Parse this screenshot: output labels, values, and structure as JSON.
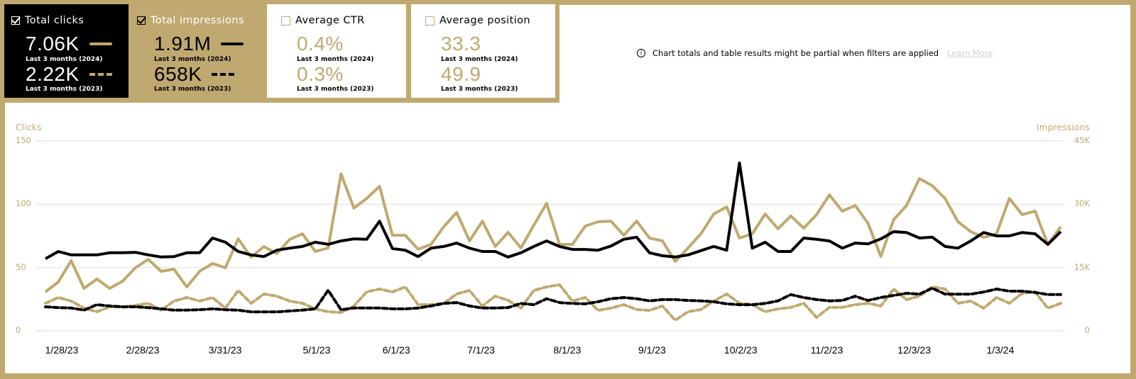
{
  "colors": {
    "gold": "#bfa970",
    "black": "#000000",
    "grid": "#f0eaea",
    "muted": "#d0d0d0"
  },
  "cards": [
    {
      "title": "Total clicks",
      "checked": true,
      "icon": "checkbox-checked-icon",
      "current": {
        "value": "7.06K",
        "label": "Last 3 months (2024)"
      },
      "previous": {
        "value": "2.22K",
        "label": "Last 3 months (2023)"
      }
    },
    {
      "title": "Total impressions",
      "checked": true,
      "icon": "checkbox-checked-icon",
      "current": {
        "value": "1.91M",
        "label": "Last 3 months (2024)"
      },
      "previous": {
        "value": "658K",
        "label": "Last 3 months (2023)"
      }
    },
    {
      "title": "Average CTR",
      "checked": false,
      "icon": "checkbox-empty-icon",
      "current": {
        "value": "0.4%",
        "label": "Last 3 months (2024)"
      },
      "previous": {
        "value": "0.3%",
        "label": "Last 3 months (2023)"
      }
    },
    {
      "title": "Average position",
      "checked": false,
      "icon": "checkbox-empty-icon",
      "current": {
        "value": "33.3",
        "label": "Last 3 months (2024)"
      },
      "previous": {
        "value": "49.9",
        "label": "Last 3 months (2023)"
      }
    }
  ],
  "notice": {
    "icon": "info-icon",
    "text": "Chart totals and table results might be partial when filters are applied",
    "link": "Learn More"
  },
  "chart_data": {
    "type": "line",
    "left_axis": {
      "label": "Clicks",
      "ticks": [
        "150",
        "100",
        "50",
        "0"
      ],
      "tick_values": [
        150,
        100,
        50,
        0
      ],
      "range": [
        0,
        150
      ]
    },
    "right_axis": {
      "label": "Impressions",
      "ticks": [
        "45K",
        "30K",
        "15K",
        "0"
      ],
      "tick_values": [
        45000,
        30000,
        15000,
        0
      ],
      "range": [
        0,
        45000
      ]
    },
    "grid": true,
    "x_range": [
      0,
      79
    ],
    "x_ticks": [
      {
        "label": "1/28/23",
        "x": 1.27
      },
      {
        "label": "2/28/23",
        "x": 7.57
      },
      {
        "label": "3/31/23",
        "x": 13.98
      },
      {
        "label": "5/1/23",
        "x": 21.1
      },
      {
        "label": "6/1/23",
        "x": 27.3
      },
      {
        "label": "7/1/23",
        "x": 33.9
      },
      {
        "label": "8/1/23",
        "x": 40.6
      },
      {
        "label": "9/1/23",
        "x": 47.2
      },
      {
        "label": "10/2/23",
        "x": 54.1
      },
      {
        "label": "11/2/23",
        "x": 60.8
      },
      {
        "label": "12/3/23",
        "x": 67.6
      },
      {
        "label": "1/3/24",
        "x": 74.3
      }
    ],
    "series": [
      {
        "name": "Total clicks (2024)",
        "axis": "left",
        "color": "#bfa970",
        "style": "solid",
        "values": [
          30.8,
          38.6,
          55.4,
          33.6,
          40.9,
          33.6,
          39.2,
          49.8,
          56.5,
          47.0,
          48.7,
          34.7,
          47.0,
          53.2,
          49.8,
          72.7,
          58.2,
          66.6,
          61.0,
          72.2,
          76.7,
          62.7,
          65.5,
          124.0,
          97.0,
          104.6,
          114.2,
          75.5,
          75.5,
          64.4,
          68.3,
          82.3,
          93.5,
          71.1,
          86.7,
          66.6,
          77.8,
          65.5,
          83.4,
          100.7,
          68.3,
          68.3,
          82.8,
          86.2,
          86.7,
          75.5,
          86.7,
          73.3,
          71.1,
          54.8,
          65.5,
          76.7,
          92.3,
          97.9,
          73.3,
          76.7,
          92.3,
          80.6,
          90.7,
          81.1,
          91.8,
          107.4,
          94.6,
          99.0,
          85.1,
          58.8,
          87.9,
          99.0,
          120.3,
          114.7,
          104.6,
          86.2,
          78.3,
          73.9,
          76.7,
          104.6,
          91.8,
          94.6,
          68.3,
          82.3
        ]
      },
      {
        "name": "Total clicks (2023)",
        "axis": "left",
        "color": "#bfa970",
        "style": "dashed",
        "values": [
          21.8,
          26.3,
          23.5,
          17.9,
          15.1,
          19.0,
          19.0,
          20.1,
          21.8,
          16.2,
          23.5,
          26.3,
          23.5,
          26.3,
          17.9,
          31.9,
          21.8,
          29.1,
          27.4,
          23.5,
          21.8,
          17.3,
          15.1,
          14.5,
          19.6,
          30.8,
          33.0,
          30.8,
          34.7,
          20.7,
          20.7,
          21.8,
          29.1,
          31.9,
          19.6,
          27.4,
          24.1,
          17.9,
          31.9,
          34.7,
          36.4,
          23.5,
          26.3,
          16.2,
          17.9,
          20.7,
          16.8,
          16.2,
          19.6,
          8.4,
          15.1,
          16.8,
          23.5,
          29.1,
          21.8,
          20.7,
          15.1,
          17.3,
          18.5,
          21.8,
          10.6,
          18.5,
          18.5,
          20.7,
          21.8,
          19.6,
          33.0,
          24.6,
          27.4,
          34.7,
          33.0,
          21.8,
          23.5,
          17.9,
          26.3,
          21.8,
          29.6,
          30.8,
          17.9,
          21.8
        ]
      },
      {
        "name": "Total impressions (2024)",
        "axis": "right",
        "color": "#000000",
        "style": "solid",
        "values": [
          17100,
          18800,
          18000,
          18000,
          18000,
          18500,
          18500,
          18600,
          18000,
          17500,
          17600,
          18500,
          18500,
          22000,
          21000,
          18800,
          18000,
          17600,
          19100,
          19600,
          20000,
          21000,
          20500,
          21300,
          21800,
          21700,
          26000,
          19500,
          19100,
          17600,
          19600,
          20000,
          20800,
          19600,
          18800,
          18800,
          17500,
          18500,
          20000,
          21300,
          20000,
          19300,
          19300,
          19100,
          20100,
          21700,
          22200,
          18500,
          17800,
          17500,
          18000,
          19000,
          20000,
          19100,
          39800,
          19600,
          21000,
          18800,
          18800,
          22000,
          21700,
          21300,
          19600,
          20800,
          20600,
          21800,
          23500,
          23300,
          22000,
          22200,
          20000,
          19600,
          21300,
          23300,
          22500,
          22500,
          23300,
          23000,
          20500,
          23500
        ]
      },
      {
        "name": "Total impressions (2023)",
        "axis": "right",
        "color": "#000000",
        "style": "dashed",
        "values": [
          5700,
          5500,
          5400,
          4900,
          6200,
          5900,
          5700,
          5700,
          5500,
          5200,
          4900,
          4900,
          5000,
          5200,
          5000,
          4900,
          4500,
          4500,
          4500,
          4700,
          4900,
          5200,
          9600,
          5000,
          5400,
          5400,
          5400,
          5200,
          5200,
          5400,
          5900,
          6500,
          6700,
          5900,
          5400,
          5400,
          5500,
          6500,
          6200,
          7600,
          6700,
          6500,
          6400,
          6900,
          7600,
          7900,
          7600,
          7100,
          7400,
          7400,
          7200,
          7100,
          6900,
          6400,
          6200,
          6200,
          6500,
          7100,
          8600,
          7900,
          7400,
          7100,
          7200,
          8200,
          7200,
          7900,
          8400,
          8900,
          8700,
          10100,
          8700,
          8700,
          8700,
          9200,
          9900,
          9400,
          9400,
          9100,
          8600,
          8600
        ]
      }
    ]
  }
}
